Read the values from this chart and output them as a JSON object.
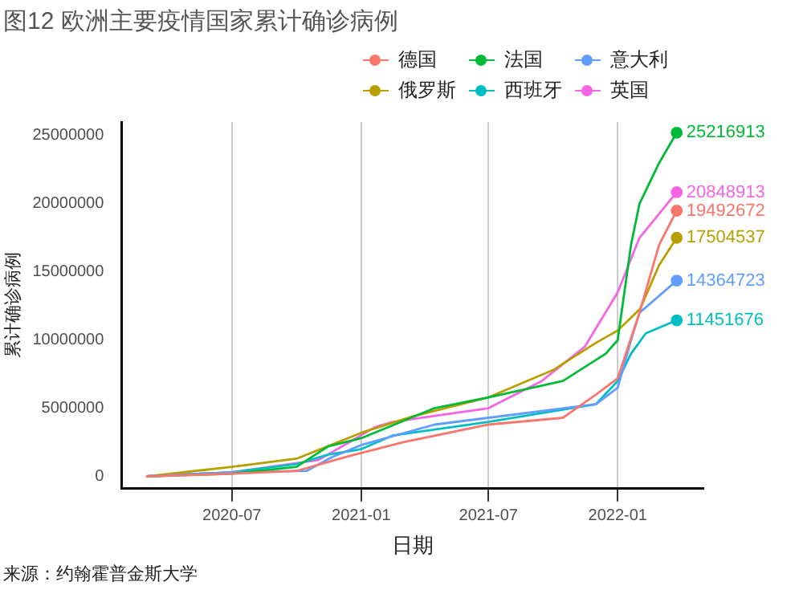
{
  "chart_data": {
    "type": "line",
    "title": "图12 欧洲主要疫情国家累计确诊病例",
    "xlabel": "日期",
    "ylabel": "累计确诊病例",
    "annotations": [
      "来源：约翰霍普金斯大学"
    ],
    "xlim": [
      "2020-01-26",
      "2022-05-03"
    ],
    "xticks": [
      "2020-07",
      "2021-01",
      "2021-07",
      "2022-01"
    ],
    "ylim": [
      -900000,
      26000000
    ],
    "yticks": [
      0,
      5000000,
      10000000,
      15000000,
      20000000,
      25000000
    ],
    "grid": "x",
    "legend": "top",
    "line_style": "solid",
    "series": [
      {
        "name": "德国",
        "color": "#f8766d",
        "x": [
          "2020-03-01",
          "2020-07-01",
          "2020-10-01",
          "2020-12-15",
          "2021-03-01",
          "2021-07-01",
          "2021-10-15",
          "2021-12-01",
          "2022-01-01",
          "2022-02-01",
          "2022-03-01",
          "2022-03-26"
        ],
        "values": [
          0,
          200000,
          400000,
          1500000,
          2500000,
          3800000,
          4300000,
          6000000,
          7200000,
          12000000,
          17000000,
          19492672
        ],
        "value_labels": [
          null,
          null,
          null,
          null,
          null,
          null,
          null,
          null,
          null,
          null,
          null,
          "19492672"
        ]
      },
      {
        "name": "法国",
        "color": "#00ba38",
        "x": [
          "2020-03-01",
          "2020-07-01",
          "2020-10-01",
          "2020-11-15",
          "2021-01-01",
          "2021-04-15",
          "2021-07-01",
          "2021-10-15",
          "2021-12-15",
          "2022-01-01",
          "2022-01-20",
          "2022-02-01",
          "2022-03-01",
          "2022-03-26"
        ],
        "values": [
          0,
          200000,
          700000,
          2200000,
          2800000,
          5000000,
          5800000,
          7000000,
          9000000,
          10000000,
          17000000,
          20000000,
          23000000,
          25216913
        ],
        "value_labels": [
          null,
          null,
          null,
          null,
          null,
          null,
          null,
          null,
          null,
          null,
          null,
          null,
          null,
          "25216913"
        ]
      },
      {
        "name": "意大利",
        "color": "#619cff",
        "x": [
          "2020-03-01",
          "2020-07-01",
          "2020-10-15",
          "2020-11-20",
          "2021-01-01",
          "2021-04-15",
          "2021-07-01",
          "2021-12-01",
          "2022-01-01",
          "2022-01-20",
          "2022-02-01",
          "2022-03-26"
        ],
        "values": [
          0,
          300000,
          400000,
          1400000,
          2300000,
          3800000,
          4300000,
          5300000,
          6500000,
          10000000,
          12000000,
          14364723
        ],
        "value_labels": [
          null,
          null,
          null,
          null,
          null,
          null,
          null,
          null,
          null,
          null,
          null,
          "14364723"
        ]
      },
      {
        "name": "俄罗斯",
        "color": "#b79f00",
        "x": [
          "2020-03-01",
          "2020-07-01",
          "2020-10-01",
          "2021-01-01",
          "2021-03-15",
          "2021-07-01",
          "2021-10-01",
          "2021-12-01",
          "2022-01-01",
          "2022-02-02",
          "2022-03-01",
          "2022-03-26"
        ],
        "values": [
          0,
          700000,
          1300000,
          3200000,
          4400000,
          5800000,
          7800000,
          9800000,
          10700000,
          12300000,
          15500000,
          17504537
        ],
        "value_labels": [
          null,
          null,
          null,
          null,
          null,
          null,
          null,
          null,
          null,
          null,
          null,
          "17504537"
        ]
      },
      {
        "name": "西班牙",
        "color": "#00bfc4",
        "x": [
          "2020-03-01",
          "2020-07-01",
          "2020-10-01",
          "2020-11-15",
          "2021-01-01",
          "2021-02-15",
          "2021-07-01",
          "2021-12-01",
          "2022-01-01",
          "2022-01-20",
          "2022-02-10",
          "2022-03-26"
        ],
        "values": [
          0,
          300000,
          900000,
          1600000,
          2000000,
          3000000,
          4000000,
          5300000,
          7000000,
          9000000,
          10500000,
          11451676
        ],
        "value_labels": [
          null,
          null,
          null,
          null,
          null,
          null,
          null,
          null,
          null,
          null,
          null,
          "11451676"
        ]
      },
      {
        "name": "英国",
        "color": "#f564e3",
        "x": [
          "2020-03-01",
          "2020-07-01",
          "2020-11-01",
          "2020-12-15",
          "2021-01-20",
          "2021-02-15",
          "2021-07-01",
          "2021-09-15",
          "2021-11-15",
          "2022-01-01",
          "2022-02-01",
          "2022-03-26"
        ],
        "values": [
          0,
          300000,
          1200000,
          2500000,
          3600000,
          4000000,
          5000000,
          7000000,
          9500000,
          13500000,
          17500000,
          20848913
        ],
        "value_labels": [
          null,
          null,
          null,
          null,
          null,
          null,
          null,
          null,
          null,
          null,
          null,
          "20848913"
        ]
      }
    ]
  }
}
